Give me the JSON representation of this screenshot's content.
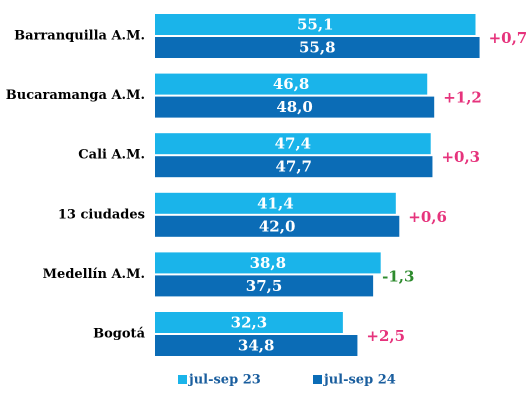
{
  "chart_data": {
    "type": "hbar",
    "categories": [
      "Barranquilla A.M.",
      "Bucaramanga A.M.",
      "Cali A.M.",
      "13 ciudades",
      "Medellín A.M.",
      "Bogotá"
    ],
    "series": [
      {
        "name": "jul-sep 23",
        "color": "#1ab4ea",
        "values": [
          55.1,
          46.8,
          47.4,
          41.4,
          38.8,
          32.3
        ],
        "value_labels": [
          "55,1",
          "46,8",
          "47,4",
          "41,4",
          "38,8",
          "32,3"
        ]
      },
      {
        "name": "jul-sep 24",
        "color": "#0b6cb6",
        "values": [
          55.8,
          48.0,
          47.7,
          42.0,
          37.5,
          34.8
        ],
        "value_labels": [
          "55,8",
          "48,0",
          "47,7",
          "42,0",
          "37,5",
          "34,8"
        ]
      }
    ],
    "annotations": [
      {
        "text": "+0,7",
        "color": "#e6337c"
      },
      {
        "text": "+1,2",
        "color": "#e6337c"
      },
      {
        "text": "+0,3",
        "color": "#e6337c"
      },
      {
        "text": "+0,6",
        "color": "#e6337c"
      },
      {
        "text": "-1,3",
        "color": "#2e8b2e"
      },
      {
        "text": "+2,5",
        "color": "#e6337c"
      }
    ],
    "xlim": [
      0,
      60
    ],
    "legend": "bottom"
  }
}
